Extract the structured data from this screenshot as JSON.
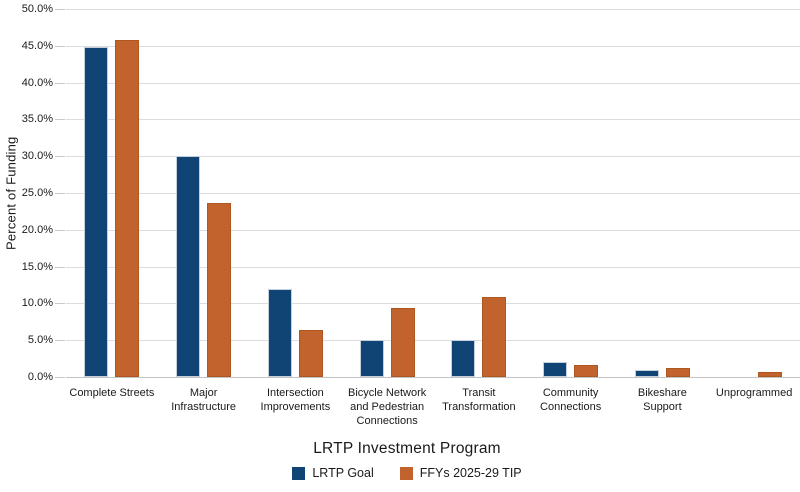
{
  "colors": {
    "goal_fill": "#0f4475",
    "goal_border": "#c6d0dd",
    "tip_fill": "#c2622c",
    "tip_border": "#ad5822",
    "gridline": "#dcdcdc",
    "axis_line": "#c4c4c4",
    "tick_mark": "#c9c9c9",
    "text": "#1a1a1a",
    "background": "#ffffff"
  },
  "chart_data": {
    "type": "bar",
    "title": "",
    "xlabel": "LRTP Investment Program",
    "ylabel": "Percent of Funding",
    "ylim": [
      0,
      50
    ],
    "ytick_step": 5,
    "ytick_suffix": "%",
    "ytick_decimals": 1,
    "grid": true,
    "legend_position": "bottom",
    "categories": [
      "Complete Streets",
      "Major Infrastructure",
      "Intersection Improvements",
      "Bicycle Network and Pedestrian Connections",
      "Transit Transformation",
      "Community Connections",
      "Bikeshare Support",
      "Unprogrammed"
    ],
    "category_label_lines": [
      [
        "Complete Streets"
      ],
      [
        "Major",
        "Infrastructure"
      ],
      [
        "Intersection",
        "Improvements"
      ],
      [
        "Bicycle Network",
        "and Pedestrian",
        "Connections"
      ],
      [
        "Transit",
        "Transformation"
      ],
      [
        "Community",
        "Connections"
      ],
      [
        "Bikeshare",
        "Support"
      ],
      [
        "Unprogrammed"
      ]
    ],
    "series": [
      {
        "name": "LRTP Goal",
        "color": "#0f4475",
        "border_color": "#c6d0dd",
        "values": [
          44.9,
          30.0,
          12.0,
          5.0,
          5.0,
          2.0,
          1.0,
          0.0
        ]
      },
      {
        "name": "FFYs 2025-29 TIP",
        "color": "#c2622c",
        "border_color": "#ad5822",
        "values": [
          45.8,
          23.6,
          6.4,
          9.4,
          10.9,
          1.7,
          1.2,
          0.7
        ]
      }
    ]
  }
}
